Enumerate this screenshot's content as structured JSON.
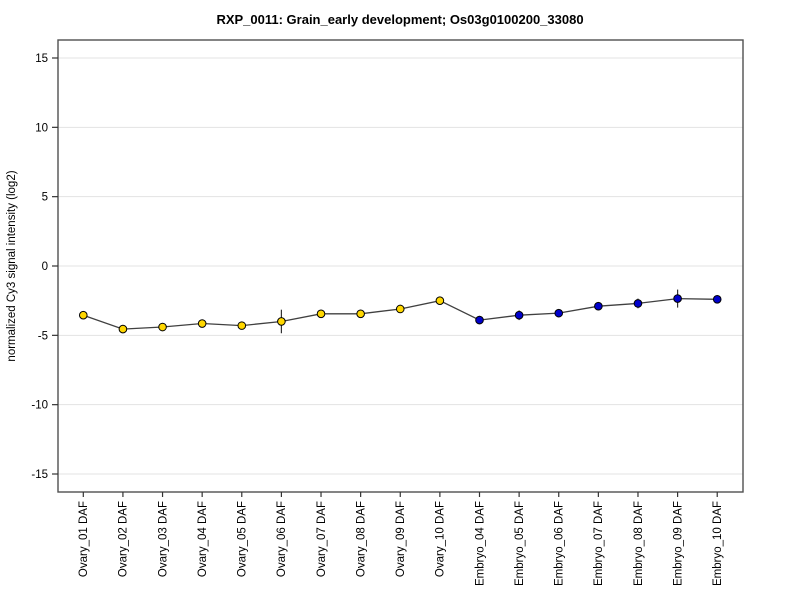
{
  "chart_data": {
    "type": "line",
    "title": "RXP_0011: Grain_early development; Os03g0100200_33080",
    "ylabel": "normalized Cy3 signal intensity (log2)",
    "xlabel": "",
    "yticks": [
      -15,
      -10,
      -5,
      0,
      5,
      10,
      15
    ],
    "ylim": [
      -16.3,
      16.3
    ],
    "grid": "horizontal-only",
    "legend": "none",
    "categories": [
      "Ovary_01 DAF",
      "Ovary_02 DAF",
      "Ovary_03 DAF",
      "Ovary_04 DAF",
      "Ovary_05 DAF",
      "Ovary_06 DAF",
      "Ovary_07 DAF",
      "Ovary_08 DAF",
      "Ovary_09 DAF",
      "Ovary_10 DAF",
      "Embryo_04 DAF",
      "Embryo_05 DAF",
      "Embryo_06 DAF",
      "Embryo_07 DAF",
      "Embryo_08 DAF",
      "Embryo_09 DAF",
      "Embryo_10 DAF"
    ],
    "series": [
      {
        "name": "Ovary",
        "marker": "circle",
        "fill": "#ffd700",
        "values": [
          -3.55,
          -4.55,
          -4.4,
          -4.15,
          -4.3,
          -4.0,
          -3.45,
          -3.45,
          -3.1,
          -2.5
        ],
        "errors": [
          0.2,
          0.3,
          0.2,
          0.2,
          0.15,
          0.85,
          0.25,
          0.15,
          0.2,
          0.15
        ]
      },
      {
        "name": "Embryo",
        "marker": "circle",
        "fill": "#0000cc",
        "values": [
          -3.9,
          -3.55,
          -3.4,
          -2.9,
          -2.7,
          -2.35,
          -2.4
        ],
        "errors": [
          0.3,
          0.35,
          0.25,
          0.3,
          0.35,
          0.65,
          0.25
        ]
      }
    ],
    "connected_line": true,
    "colors": {
      "line": "#404040",
      "grid": "#e3e3e3",
      "box": "#505050",
      "tick": "#333333",
      "error": "#333333",
      "marker_stroke": "#000000",
      "background": "#ffffff"
    }
  }
}
